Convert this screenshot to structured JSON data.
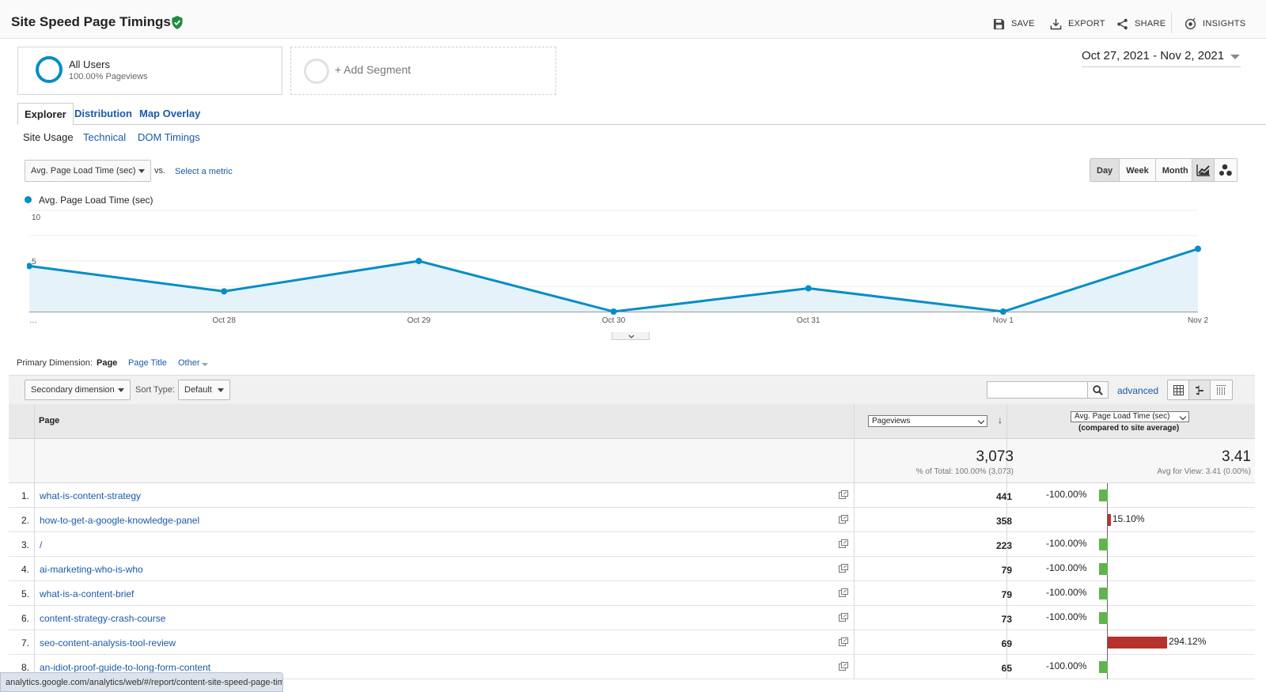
{
  "header": {
    "title": "Site Speed Page Timings",
    "actions": [
      "SAVE",
      "EXPORT",
      "SHARE",
      "INSIGHTS"
    ]
  },
  "segments": {
    "active": {
      "name": "All Users",
      "sub": "100.00% Pageviews"
    },
    "add_label": "+ Add Segment"
  },
  "date_range": "Oct 27, 2021 - Nov 2, 2021",
  "tabs": [
    "Explorer",
    "Distribution",
    "Map Overlay"
  ],
  "subtabs": [
    "Site Usage",
    "Technical",
    "DOM Timings"
  ],
  "metric": {
    "selected": "Avg. Page Load Time (sec)",
    "vs": "vs.",
    "select_metric": "Select a metric"
  },
  "periods": [
    "Day",
    "Week",
    "Month"
  ],
  "legend": "Avg. Page Load Time (sec)",
  "chart_data": {
    "type": "area",
    "series": [
      {
        "name": "Avg. Page Load Time (sec)",
        "values": [
          4.5,
          2.0,
          5.0,
          0.0,
          2.3,
          0.0,
          6.2
        ]
      }
    ],
    "x": [
      "…",
      "Oct 28",
      "Oct 29",
      "Oct 30",
      "Oct 31",
      "Nov 1",
      "Nov 2"
    ],
    "yticks": [
      "10",
      "5"
    ],
    "ylim": [
      0,
      10
    ]
  },
  "primary_dimension": {
    "label": "Primary Dimension:",
    "selected": "Page",
    "options": [
      "Page Title",
      "Other"
    ]
  },
  "controls": {
    "secondary_dimension": "Secondary dimension",
    "sort_label": "Sort Type:",
    "sort_type": "Default",
    "advanced": "advanced"
  },
  "table": {
    "col_page": "Page",
    "col_metric1": "Pageviews",
    "col_metric2": "Avg. Page Load Time (sec)",
    "col_metric2_sub": "(compared to site average)",
    "totals": {
      "pageviews": "3,073",
      "pageviews_sub": "% of Total: 100.00% (3,073)",
      "load": "3.41",
      "load_sub": "Avg for View: 3.41 (0.00%)"
    },
    "rows": [
      {
        "idx": "1.",
        "page": "what-is-content-strategy",
        "pageviews": "441",
        "compare": "-100.00%",
        "compare_value": -100
      },
      {
        "idx": "2.",
        "page": "how-to-get-a-google-knowledge-panel",
        "pageviews": "358",
        "compare": "15.10%",
        "compare_value": 15.1
      },
      {
        "idx": "3.",
        "page": "/",
        "pageviews": "223",
        "compare": "-100.00%",
        "compare_value": -100
      },
      {
        "idx": "4.",
        "page": "ai-marketing-who-is-who",
        "pageviews": "79",
        "compare": "-100.00%",
        "compare_value": -100
      },
      {
        "idx": "5.",
        "page": "what-is-a-content-brief",
        "pageviews": "79",
        "compare": "-100.00%",
        "compare_value": -100
      },
      {
        "idx": "6.",
        "page": "content-strategy-crash-course",
        "pageviews": "73",
        "compare": "-100.00%",
        "compare_value": -100
      },
      {
        "idx": "7.",
        "page": "seo-content-analysis-tool-review",
        "pageviews": "69",
        "compare": "294.12%",
        "compare_value": 294.12
      },
      {
        "idx": "8.",
        "page": "an-idiot-proof-guide-to-long-form-content",
        "pageviews": "65",
        "compare": "-100.00%",
        "compare_value": -100
      }
    ]
  },
  "status_url": "analytics.google.com/analytics/web/#/report/content-site-speed-page-timings/a69084150w96904117p100191830/",
  "colors": {
    "series": "#058dc7",
    "positive": "#b6322c",
    "negative": "#5fb54b",
    "link": "#1a5aa8"
  }
}
